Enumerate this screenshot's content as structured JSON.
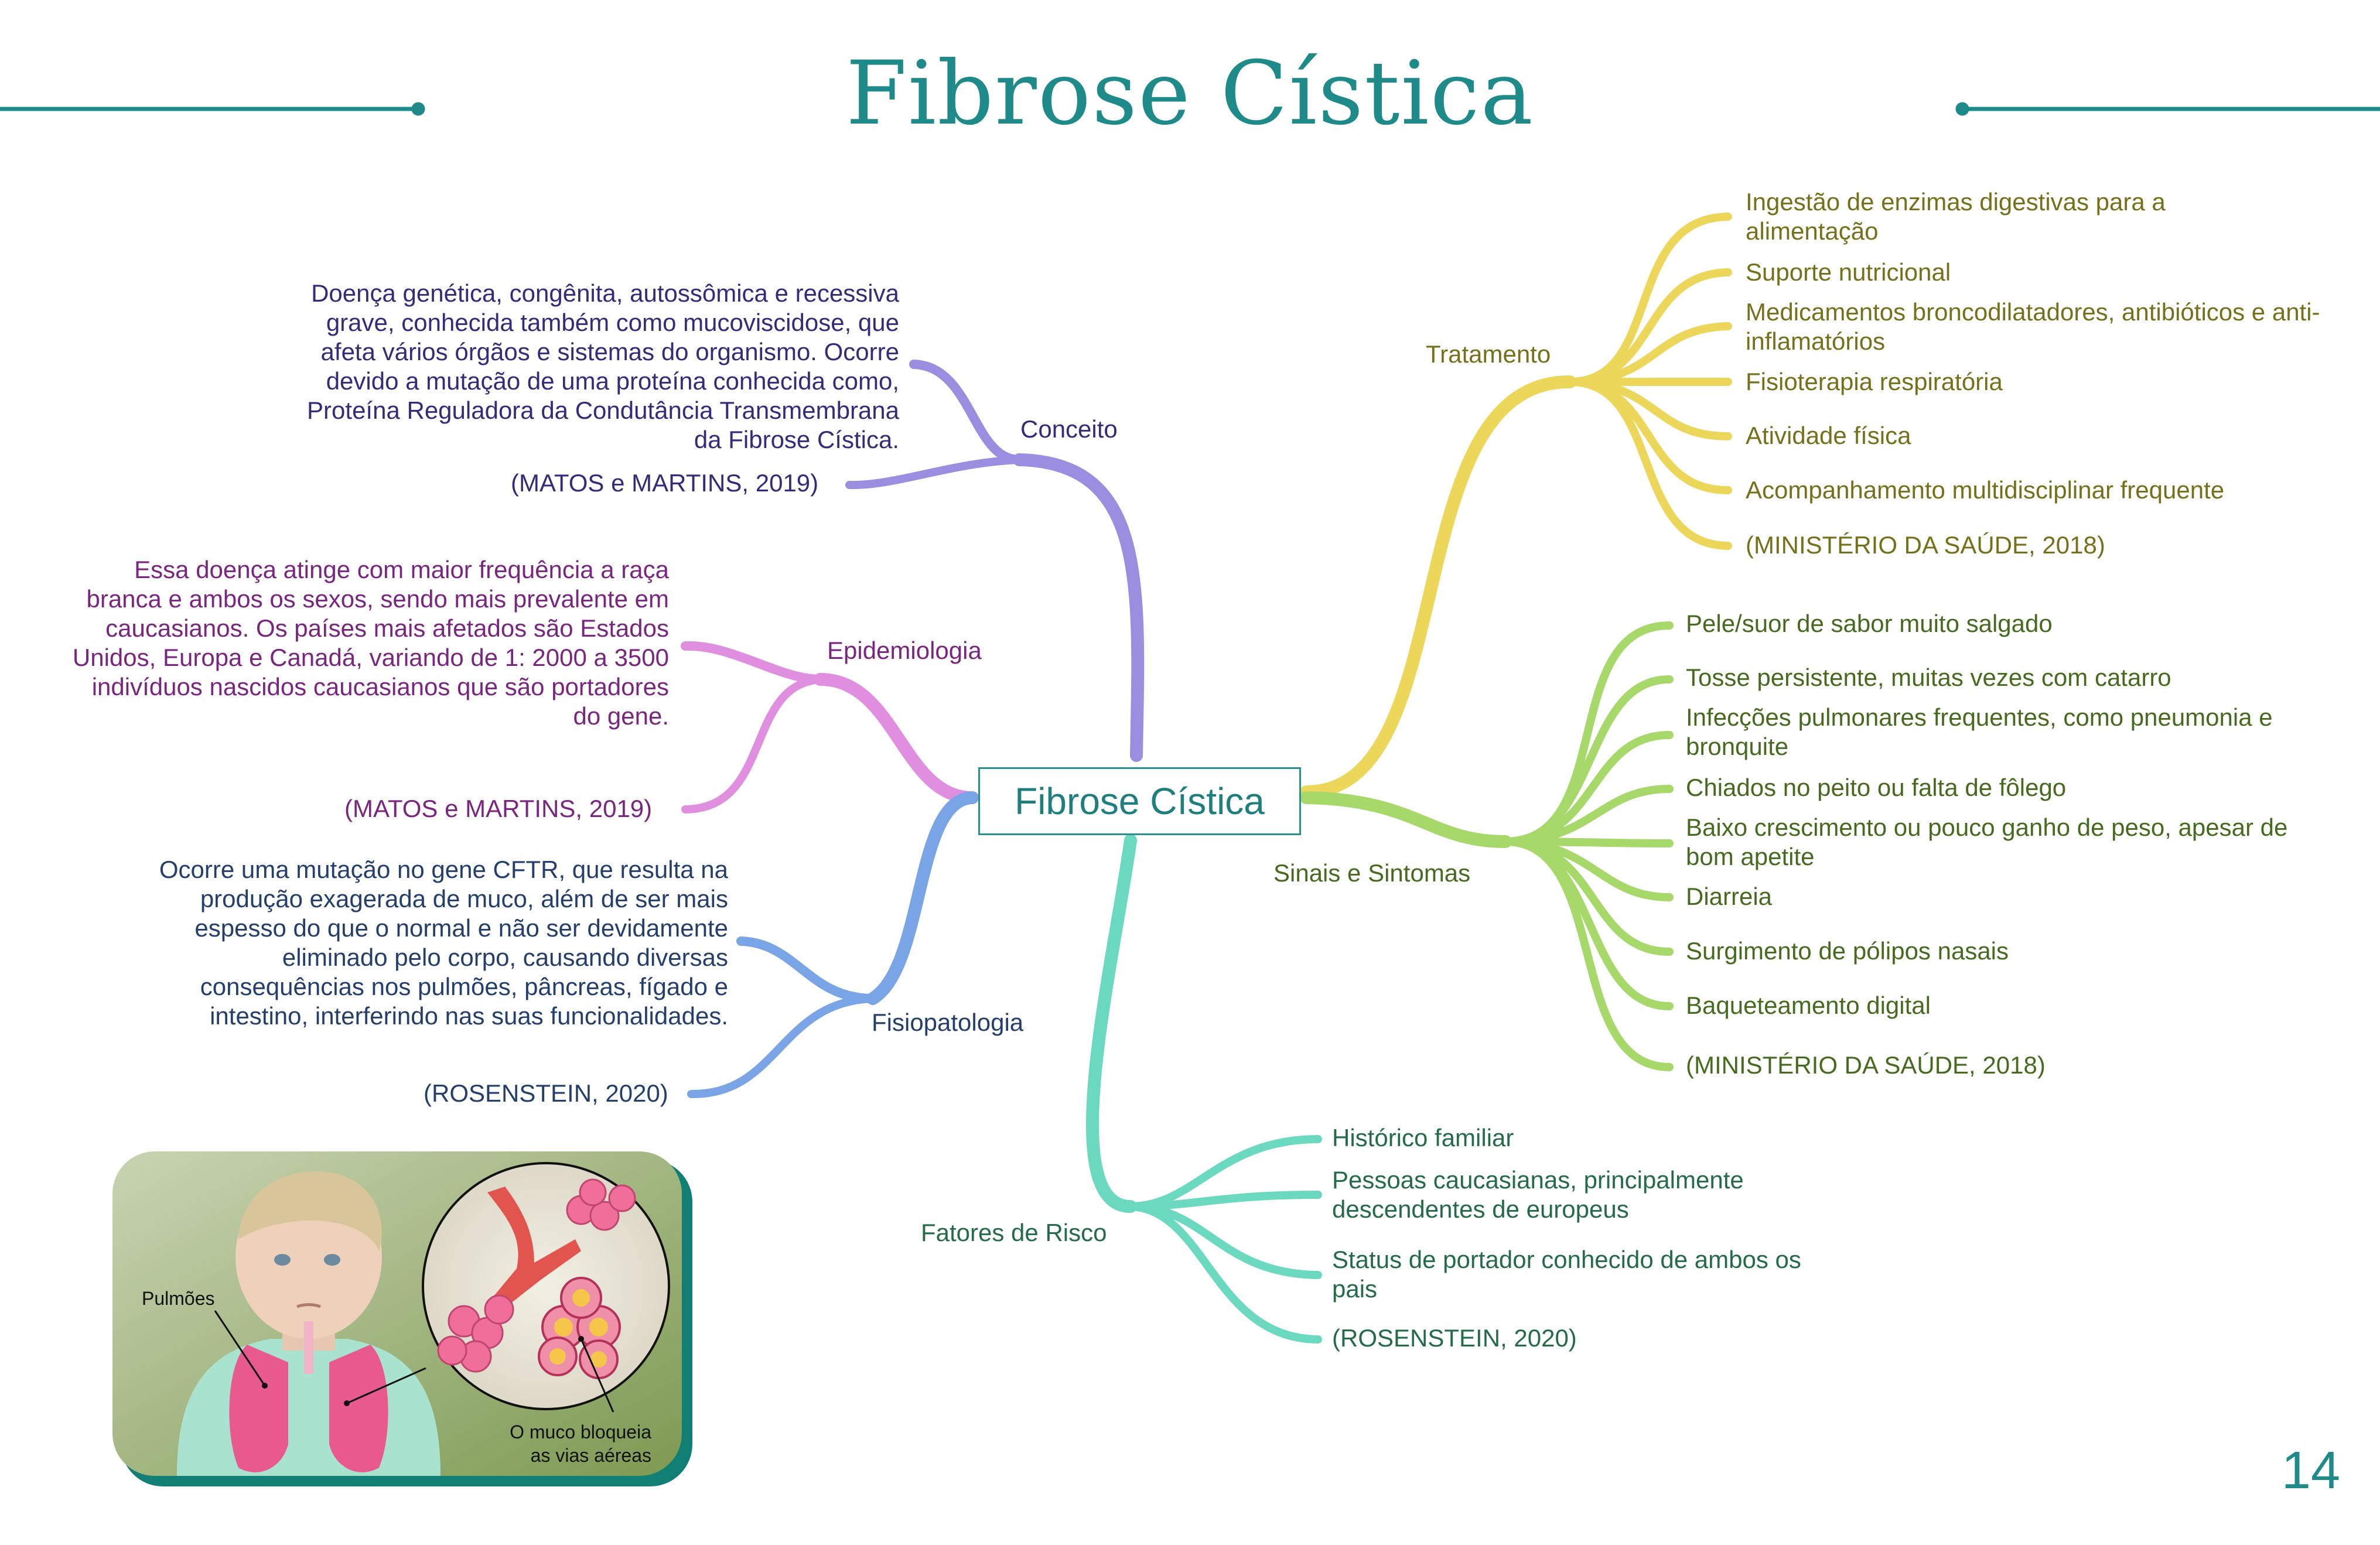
{
  "title": "Fibrose Cística",
  "page_number": "14",
  "center": "Fibrose Cística",
  "colors": {
    "teal": "#1f8a8a",
    "conceito": "#9b8de0",
    "epidemiologia": "#e08fe0",
    "fisiopatologia": "#79a5e6",
    "fatores": "#6ad9c0",
    "tratamento": "#ecd75a",
    "sinais": "#a6d86a"
  },
  "branches": {
    "conceito": {
      "label": "Conceito",
      "text": "Doença genética, congênita, autossômica e recessiva grave, conhecida também como mucoviscidose, que afeta vários órgãos e sistemas do organismo. Ocorre devido a mutação de uma proteína conhecida como, Proteína Reguladora da Condutância Transmembrana da Fibrose Cística.",
      "ref": "(MATOS e MARTINS, 2019)"
    },
    "epidemiologia": {
      "label": "Epidemiologia",
      "text": "Essa doença atinge com maior frequência a raça branca e ambos os sexos, sendo mais prevalente em caucasianos. Os países mais afetados são Estados Unidos, Europa e Canadá, variando de 1: 2000 a 3500 indivíduos nascidos caucasianos que são portadores do gene.",
      "ref": "(MATOS e MARTINS, 2019)"
    },
    "fisiopatologia": {
      "label": "Fisiopatologia",
      "text": "Ocorre uma mutação no gene CFTR, que resulta na produção exagerada de muco, além de ser mais espesso do que o normal e não ser devidamente eliminado pelo corpo, causando diversas consequências nos pulmões, pâncreas, fígado e intestino, interferindo nas suas funcionalidades.",
      "ref": "(ROSENSTEIN, 2020)"
    },
    "fatores": {
      "label": "Fatores de Risco",
      "items": [
        "Histórico familiar",
        "Pessoas caucasianas, principalmente descendentes de europeus",
        "Status de portador conhecido de ambos os pais",
        "(ROSENSTEIN, 2020)"
      ]
    },
    "tratamento": {
      "label": "Tratamento",
      "items": [
        "Ingestão de enzimas digestivas para a alimentação",
        "Suporte nutricional",
        "Medicamentos broncodilatadores, antibióticos e anti-inflamatórios",
        "Fisioterapia respiratória",
        "Atividade física",
        "Acompanhamento multidisciplinar frequente",
        "(MINISTÉRIO DA SAÚDE, 2018)"
      ]
    },
    "sinais": {
      "label": "Sinais e Sintomas",
      "items": [
        "Pele/suor de sabor muito salgado",
        "Tosse persistente, muitas vezes com catarro",
        "Infecções pulmonares frequentes, como pneumonia e bronquite",
        "Chiados no peito ou falta de fôlego",
        "Baixo crescimento ou pouco ganho de peso, apesar de bom apetite",
        "Diarreia",
        "Surgimento de pólipos nasais",
        "Baqueteamento digital",
        "(MINISTÉRIO DA SAÚDE, 2018)"
      ]
    }
  },
  "illustration": {
    "label_lungs": "Pulmões",
    "label_mucus": "O muco bloqueia as vias aéreas"
  }
}
